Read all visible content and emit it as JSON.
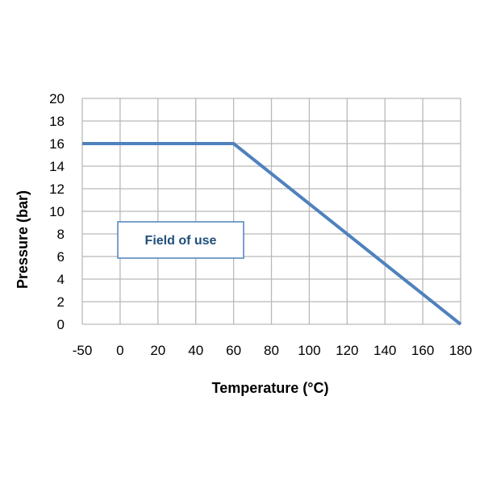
{
  "chart_data": {
    "type": "line",
    "xlabel": "Temperature (°C)",
    "ylabel": "Pressure (bar)",
    "x_categories": [
      "-50",
      "0",
      "20",
      "40",
      "60",
      "80",
      "100",
      "120",
      "140",
      "160",
      "180"
    ],
    "y_ticks": [
      0,
      2,
      4,
      6,
      8,
      10,
      12,
      14,
      16,
      18,
      20
    ],
    "ylim": [
      0,
      20
    ],
    "grid": true,
    "series": [
      {
        "x": [
          "-50",
          "60",
          "180"
        ],
        "y": [
          16,
          16,
          0
        ],
        "color": "#4f81bd"
      }
    ],
    "annotations": [
      {
        "text": "Field of use",
        "color": "#1f4e79",
        "border_color": "#4f81bd"
      }
    ]
  },
  "colors": {
    "grid": "#b9b9b9",
    "line": "#4f81bd",
    "annotation_text": "#1f4e79"
  }
}
